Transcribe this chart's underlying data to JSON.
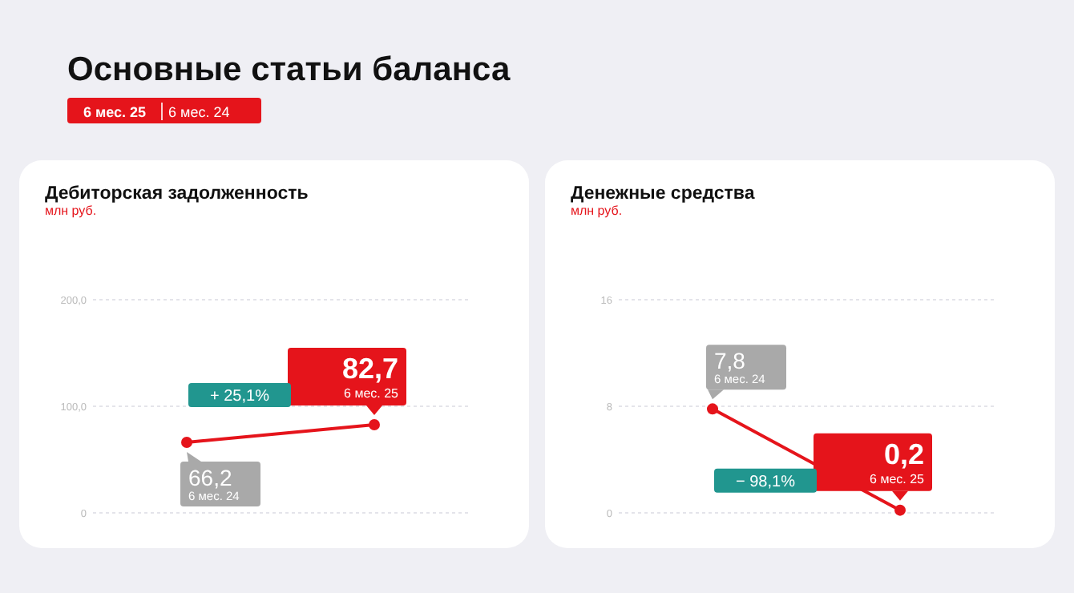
{
  "chart_data": [
    {
      "type": "other",
      "title": "Основные статьи баланса",
      "annotations": [
        "6 мес. 25",
        "6 мес. 24"
      ]
    },
    {
      "type": "line",
      "title": "Дебиторская задолженность",
      "subtitle": "млн руб.",
      "categories": [
        null,
        null
      ],
      "series": [
        {
          "color": "#e5141b",
          "values": [
            66.2,
            82.7
          ]
        }
      ],
      "value_labels": [
        "66,2",
        "82,7"
      ],
      "ylim": [
        0,
        200
      ],
      "yticks": [
        {
          "value": 0,
          "label": "0"
        },
        {
          "value": 100,
          "label": "100,0"
        },
        {
          "value": 200,
          "label": "200,0"
        }
      ],
      "grid": "y",
      "marker": "circle",
      "tick_labels": "y",
      "annotations": [
        "6 мес. 24",
        "6 мес. 25",
        "+ 25,1%"
      ]
    },
    {
      "type": "line",
      "title": "Денежные средства",
      "subtitle": "млн руб.",
      "categories": [
        null,
        null
      ],
      "series": [
        {
          "color": "#e5141b",
          "values": [
            7.8,
            0.2
          ]
        }
      ],
      "value_labels": [
        "7,8",
        "0,2"
      ],
      "ylim": [
        0,
        16
      ],
      "yticks": [
        0,
        8,
        16
      ],
      "grid": "y",
      "marker": "circle",
      "tick_labels": "y",
      "annotations": [
        "6 мес. 24",
        "6 мес. 25",
        "− 98,1%"
      ]
    }
  ]
}
